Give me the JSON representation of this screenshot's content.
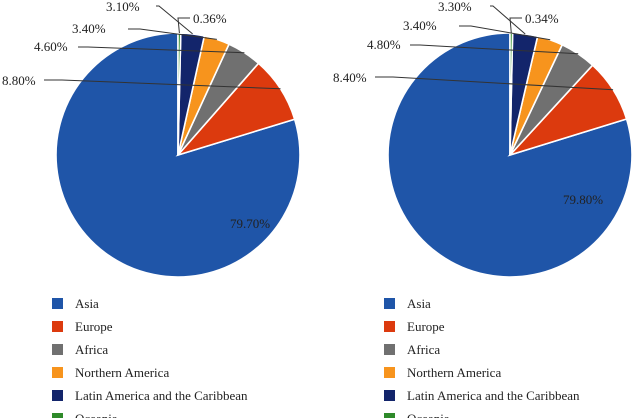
{
  "chart_data": [
    {
      "type": "pie",
      "categories": [
        "Asia",
        "Europe",
        "Africa",
        "Northern America",
        "Latin America and the Caribbean",
        "Oceania"
      ],
      "values": [
        79.7,
        8.8,
        4.6,
        3.4,
        3.1,
        0.36
      ],
      "labels": [
        "79.70%",
        "8.80%",
        "4.60%",
        "3.40%",
        "3.10%",
        "0.36%"
      ],
      "colors": [
        "#1f55a8",
        "#dc3a0e",
        "#707070",
        "#f7941d",
        "#13256b",
        "#2e8a2a"
      ],
      "legend": "bottom"
    },
    {
      "type": "pie",
      "categories": [
        "Asia",
        "Europe",
        "Africa",
        "Northern America",
        "Latin America and the Caribbean",
        "Oceania"
      ],
      "values": [
        79.8,
        8.4,
        4.8,
        3.4,
        3.3,
        0.34
      ],
      "labels": [
        "79.80%",
        "8.40%",
        "4.80%",
        "3.40%",
        "3.30%",
        "0.34%"
      ],
      "colors": [
        "#1f55a8",
        "#dc3a0e",
        "#707070",
        "#f7941d",
        "#13256b",
        "#2e8a2a"
      ],
      "legend": "bottom"
    }
  ]
}
